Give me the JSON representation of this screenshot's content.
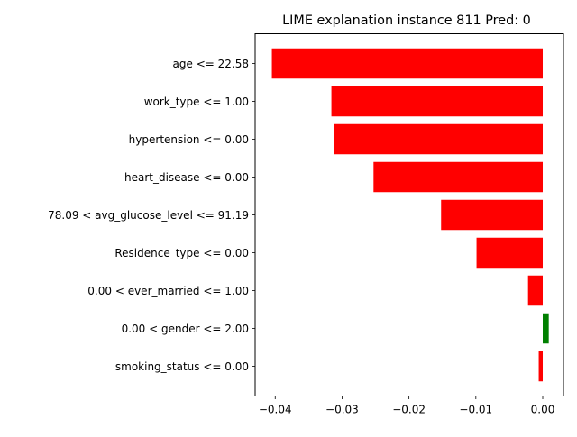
{
  "chart_data": {
    "type": "bar",
    "orientation": "horizontal",
    "title": "LIME explanation instance 811 Pred: 0",
    "xlabel": "",
    "ylabel": "",
    "categories": [
      "age <= 22.58",
      "work_type <= 1.00",
      "hypertension <= 0.00",
      "heart_disease <= 0.00",
      "78.09 < avg_glucose_level <= 91.19",
      "Residence_type <= 0.00",
      "0.00 < ever_married <= 1.00",
      "0.00 < gender <= 2.00",
      "smoking_status <= 0.00"
    ],
    "values": [
      -0.0405,
      -0.0316,
      -0.0312,
      -0.0253,
      -0.0152,
      -0.0099,
      -0.0022,
      0.0009,
      -0.0006
    ],
    "colors": [
      "#ff0000",
      "#ff0000",
      "#ff0000",
      "#ff0000",
      "#ff0000",
      "#ff0000",
      "#ff0000",
      "#008000",
      "#ff0000"
    ],
    "xlim": [
      -0.043,
      0.0031
    ],
    "xticks": [
      -0.04,
      -0.03,
      -0.02,
      -0.01,
      0.0
    ],
    "xtick_labels": [
      "−0.04",
      "−0.03",
      "−0.02",
      "−0.01",
      "0.00"
    ],
    "grid": false,
    "legend": "none"
  }
}
